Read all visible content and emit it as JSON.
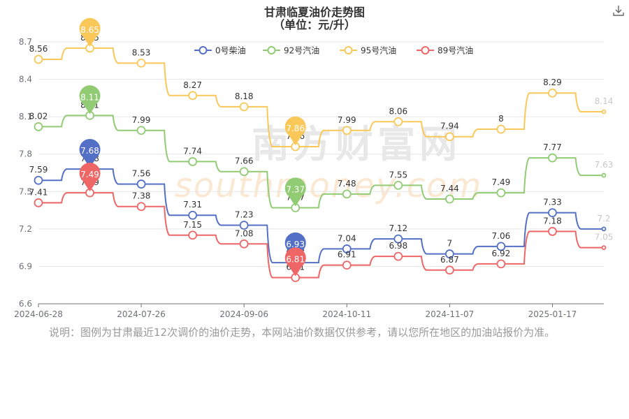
{
  "title": "甘肃临夏油价走势图",
  "subtitle": "（单位：元/升）",
  "note": "说明：图例为甘肃最近12次调价的油价走势，本网站油价数据仅供参考，请以您所在地区的加油站报价为准。",
  "watermark": {
    "cn": "南方财富网",
    "en": "southmoney.com"
  },
  "icons": {
    "download": "download-icon"
  },
  "chart_data": {
    "type": "line",
    "title": "甘肃临夏油价走势图",
    "subtitle": "（单位：元/升）",
    "x_ticks": [
      "2024-06-28",
      "2024-07-26",
      "2024-09-06",
      "2024-10-11",
      "2024-11-07",
      "2025-01-17"
    ],
    "ylim": [
      6.6,
      8.7
    ],
    "y_ticks": [
      "6.6",
      "6.9",
      "7.2",
      "7.5",
      "7.8",
      "8.1",
      "8.4",
      "8.7"
    ],
    "grid": true,
    "legend_position": "top",
    "series": [
      {
        "name": "0号柴油",
        "color": "#5470c6",
        "values": [
          7.59,
          7.68,
          7.56,
          7.31,
          7.23,
          6.93,
          7.04,
          7.12,
          7.0,
          7.06,
          7.33,
          7.2
        ],
        "labels": [
          "7.59",
          "7.68",
          "7.56",
          "7.31",
          "7.23",
          "6.93",
          "7.04",
          "7.12",
          "7",
          "7.06",
          "7.33",
          "7.2"
        ],
        "max_index": 1,
        "min_index": 5
      },
      {
        "name": "92号汽油",
        "color": "#91cc75",
        "values": [
          8.02,
          8.11,
          7.99,
          7.74,
          7.66,
          7.37,
          7.48,
          7.55,
          7.44,
          7.49,
          7.77,
          7.63
        ],
        "labels": [
          "8.02",
          "8.11",
          "7.99",
          "7.74",
          "7.66",
          "7.37",
          "7.48",
          "7.55",
          "7.44",
          "7.49",
          "7.77",
          "7.63"
        ],
        "max_index": 1,
        "min_index": 5
      },
      {
        "name": "95号汽油",
        "color": "#fac858",
        "values": [
          8.56,
          8.65,
          8.53,
          8.27,
          8.18,
          7.86,
          7.99,
          8.06,
          7.94,
          8.0,
          8.29,
          8.14
        ],
        "labels": [
          "8.56",
          "8.65",
          "8.53",
          "8.27",
          "8.18",
          "7.86",
          "7.99",
          "8.06",
          "7.94",
          "8",
          "8.29",
          "8.14"
        ],
        "max_index": 1,
        "min_index": 5
      },
      {
        "name": "89号汽油",
        "color": "#ee6666",
        "values": [
          7.41,
          7.49,
          7.38,
          7.15,
          7.08,
          6.81,
          6.91,
          6.98,
          6.87,
          6.92,
          7.18,
          7.05
        ],
        "labels": [
          "7.41",
          "7.49",
          "7.38",
          "7.15",
          "7.08",
          "6.81",
          "6.91",
          "6.98",
          "6.87",
          "6.92",
          "7.18",
          "7.05"
        ],
        "max_index": 1,
        "min_index": 5
      }
    ]
  }
}
